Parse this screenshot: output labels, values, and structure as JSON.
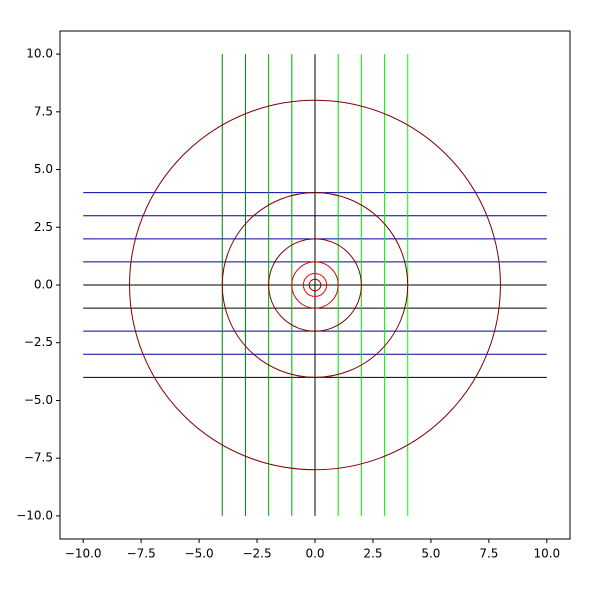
{
  "chart_data": {
    "type": "line",
    "xlim": [
      -11,
      11
    ],
    "ylim": [
      -11,
      11
    ],
    "xticks": [
      {
        "value": -10,
        "label": "−10.0"
      },
      {
        "value": -7.5,
        "label": "−7.5"
      },
      {
        "value": -5,
        "label": "−5.0"
      },
      {
        "value": -2.5,
        "label": "−2.5"
      },
      {
        "value": 0,
        "label": "0.0"
      },
      {
        "value": 2.5,
        "label": "2.5"
      },
      {
        "value": 5,
        "label": "5.0"
      },
      {
        "value": 7.5,
        "label": "7.5"
      },
      {
        "value": 10,
        "label": "10.0"
      }
    ],
    "yticks": [
      {
        "value": -10,
        "label": "−10.0"
      },
      {
        "value": -7.5,
        "label": "−7.5"
      },
      {
        "value": -5,
        "label": "−5.0"
      },
      {
        "value": -2.5,
        "label": "−2.5"
      },
      {
        "value": 0,
        "label": "0.0"
      },
      {
        "value": 2.5,
        "label": "2.5"
      },
      {
        "value": 5,
        "label": "5.0"
      },
      {
        "value": 7.5,
        "label": "7.5"
      },
      {
        "value": 10,
        "label": "10.0"
      }
    ],
    "series": [
      {
        "color": "#0000aa",
        "x": [
          -10,
          10
        ],
        "values": [
          4,
          4
        ]
      },
      {
        "color": "#0000aa",
        "x": [
          -10,
          10
        ],
        "values": [
          3,
          3
        ]
      },
      {
        "color": "#0000aa",
        "x": [
          -10,
          10
        ],
        "values": [
          2,
          2
        ]
      },
      {
        "color": "#0000aa",
        "x": [
          -10,
          10
        ],
        "values": [
          1,
          1
        ]
      },
      {
        "color": "#000000",
        "x": [
          -10,
          10
        ],
        "values": [
          0,
          0
        ]
      },
      {
        "color": "#000000",
        "x": [
          -10,
          10
        ],
        "values": [
          -1,
          -1
        ]
      },
      {
        "color": "#0000aa",
        "x": [
          -10,
          10
        ],
        "values": [
          -2,
          -2
        ]
      },
      {
        "color": "#0000aa",
        "x": [
          -10,
          10
        ],
        "values": [
          -3,
          -3
        ]
      },
      {
        "color": "#000000",
        "x": [
          -10,
          10
        ],
        "values": [
          -4,
          -4
        ]
      },
      {
        "color": "#008000",
        "x": [
          -4,
          -4
        ],
        "values": [
          -10,
          10
        ]
      },
      {
        "color": "#008000",
        "x": [
          -3,
          -3
        ],
        "values": [
          -10,
          10
        ]
      },
      {
        "color": "#00aa00",
        "x": [
          -2,
          -2
        ],
        "values": [
          -10,
          10
        ]
      },
      {
        "color": "#00aa00",
        "x": [
          -1,
          -1
        ],
        "values": [
          -10,
          10
        ]
      },
      {
        "color": "#000000",
        "x": [
          0,
          0
        ],
        "values": [
          -10,
          10
        ]
      },
      {
        "color": "#00dd00",
        "x": [
          1,
          1
        ],
        "values": [
          -10,
          10
        ]
      },
      {
        "color": "#00ee00",
        "x": [
          2,
          2
        ],
        "values": [
          -10,
          10
        ]
      },
      {
        "color": "#00ff00",
        "x": [
          3,
          3
        ],
        "values": [
          -10,
          10
        ]
      },
      {
        "color": "#00ff00",
        "x": [
          4,
          4
        ],
        "values": [
          -10,
          10
        ]
      }
    ],
    "circles": [
      {
        "center": [
          0,
          0
        ],
        "radius": 8,
        "color": "#800000"
      },
      {
        "center": [
          0,
          0
        ],
        "radius": 4,
        "color": "#800000"
      },
      {
        "center": [
          0,
          0
        ],
        "radius": 2,
        "color": "#800000"
      },
      {
        "center": [
          0,
          0
        ],
        "radius": 1,
        "color": "#dd0000"
      },
      {
        "center": [
          0,
          0
        ],
        "radius": 0.5,
        "color": "#ff0000"
      },
      {
        "center": [
          0,
          0
        ],
        "radius": 0.25,
        "color": "#aa0000"
      }
    ]
  }
}
